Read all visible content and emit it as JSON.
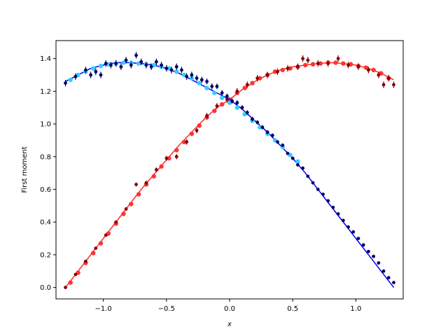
{
  "chart_data": {
    "type": "scatter",
    "title": "",
    "xlabel": "x",
    "ylabel": "First moment",
    "xlim": [
      -1.375,
      1.375
    ],
    "ylim": [
      -0.07,
      1.51
    ],
    "xticks": [
      -1.0,
      -0.5,
      0.0,
      0.5,
      1.0
    ],
    "xtick_labels": [
      "−1.0",
      "−0.5",
      "0.0",
      "0.5",
      "1.0"
    ],
    "yticks": [
      0.0,
      0.2,
      0.4,
      0.6,
      0.8,
      1.0,
      1.2,
      1.4
    ],
    "ytick_labels": [
      "0.0",
      "0.2",
      "0.4",
      "0.6",
      "0.8",
      "1.0",
      "1.2",
      "1.4"
    ],
    "grid": false,
    "legend": "none",
    "series": [
      {
        "kind": "line",
        "color": "#ff2a2a",
        "x": [
          -1.3,
          -1.2,
          -1.1,
          -1.0,
          -0.9,
          -0.8,
          -0.7,
          -0.6,
          -0.5,
          -0.4,
          -0.3,
          -0.2,
          -0.1,
          0.0,
          0.1,
          0.2,
          0.3,
          0.4,
          0.5,
          0.6,
          0.7,
          0.8,
          0.9,
          1.0,
          1.1,
          1.2,
          1.3
        ],
        "y": [
          0.0,
          0.1,
          0.2,
          0.3,
          0.4,
          0.5,
          0.6,
          0.69,
          0.78,
          0.87,
          0.95,
          1.03,
          1.1,
          1.15,
          1.21,
          1.26,
          1.3,
          1.33,
          1.35,
          1.36,
          1.37,
          1.375,
          1.37,
          1.36,
          1.34,
          1.31,
          1.27
        ]
      },
      {
        "kind": "points",
        "color": "#ff3333",
        "x": [
          -1.26,
          -1.2,
          -1.14,
          -1.08,
          -1.02,
          -0.96,
          -0.9,
          -0.84,
          -0.78,
          -0.72,
          -0.66,
          -0.6,
          -0.54,
          -0.48,
          -0.42,
          -0.36,
          -0.3,
          -0.24,
          -0.18,
          -0.12,
          -0.06,
          0.0,
          0.06,
          0.12,
          0.18,
          0.24,
          0.3,
          0.36,
          0.42,
          0.48,
          0.54,
          0.6,
          0.66,
          0.72,
          0.78,
          0.84,
          0.9,
          0.96,
          1.02,
          1.08,
          1.14,
          1.2,
          1.26
        ],
        "y": [
          0.03,
          0.09,
          0.15,
          0.21,
          0.27,
          0.33,
          0.39,
          0.45,
          0.51,
          0.57,
          0.63,
          0.68,
          0.74,
          0.79,
          0.84,
          0.89,
          0.94,
          0.99,
          1.04,
          1.08,
          1.12,
          1.15,
          1.19,
          1.22,
          1.25,
          1.28,
          1.3,
          1.32,
          1.33,
          1.34,
          1.35,
          1.36,
          1.365,
          1.37,
          1.375,
          1.375,
          1.37,
          1.365,
          1.355,
          1.345,
          1.33,
          1.31,
          1.28
        ]
      },
      {
        "kind": "errorbar",
        "color": "#8b0000",
        "x": [
          -1.3,
          -1.22,
          -1.14,
          -1.06,
          -0.98,
          -0.9,
          -0.82,
          -0.74,
          -0.66,
          -0.58,
          -0.5,
          -0.42,
          -0.34,
          -0.26,
          -0.18,
          -0.1,
          -0.02,
          0.06,
          0.14,
          0.22,
          0.3,
          0.38,
          0.46,
          0.54,
          0.58,
          0.62,
          0.7,
          0.78,
          0.86,
          0.94,
          1.02,
          1.1,
          1.18,
          1.22,
          1.26,
          1.3
        ],
        "y": [
          0.0,
          0.08,
          0.16,
          0.24,
          0.32,
          0.4,
          0.48,
          0.63,
          0.64,
          0.72,
          0.79,
          0.8,
          0.89,
          0.96,
          1.05,
          1.11,
          1.15,
          1.2,
          1.24,
          1.28,
          1.3,
          1.32,
          1.34,
          1.35,
          1.4,
          1.39,
          1.37,
          1.37,
          1.4,
          1.36,
          1.35,
          1.33,
          1.3,
          1.24,
          1.28,
          1.24
        ],
        "yerr": [
          0.005,
          0.006,
          0.007,
          0.008,
          0.009,
          0.01,
          0.011,
          0.012,
          0.013,
          0.014,
          0.015,
          0.016,
          0.017,
          0.017,
          0.018,
          0.018,
          0.019,
          0.019,
          0.02,
          0.02,
          0.02,
          0.02,
          0.02,
          0.02,
          0.02,
          0.02,
          0.02,
          0.02,
          0.02,
          0.02,
          0.02,
          0.02,
          0.02,
          0.02,
          0.02,
          0.02
        ]
      },
      {
        "kind": "line",
        "color": "#0000ee",
        "x": [
          -1.3,
          -1.2,
          -1.1,
          -1.0,
          -0.9,
          -0.8,
          -0.7,
          -0.6,
          -0.5,
          -0.4,
          -0.3,
          -0.2,
          -0.1,
          0.0,
          0.1,
          0.2,
          0.3,
          0.4,
          0.5,
          0.6,
          0.7,
          0.8,
          0.9,
          1.0,
          1.1,
          1.2,
          1.3
        ],
        "y": [
          1.26,
          1.3,
          1.34,
          1.36,
          1.375,
          1.375,
          1.37,
          1.36,
          1.34,
          1.31,
          1.27,
          1.23,
          1.19,
          1.15,
          1.09,
          1.02,
          0.95,
          0.87,
          0.79,
          0.7,
          0.6,
          0.5,
          0.4,
          0.3,
          0.2,
          0.1,
          0.0
        ]
      },
      {
        "kind": "points",
        "color": "#33ccff",
        "x": [
          -1.26,
          -1.2,
          -1.14,
          -1.08,
          -1.02,
          -0.96,
          -0.9,
          -0.84,
          -0.78,
          -0.72,
          -0.66,
          -0.6,
          -0.54,
          -0.48,
          -0.42,
          -0.36,
          -0.3,
          -0.24,
          -0.18,
          -0.12,
          -0.06,
          0.0,
          0.06,
          0.12,
          0.18,
          0.24,
          0.3,
          0.36,
          0.42,
          0.48,
          0.54
        ],
        "y": [
          1.27,
          1.3,
          1.32,
          1.34,
          1.355,
          1.365,
          1.37,
          1.375,
          1.375,
          1.37,
          1.365,
          1.36,
          1.35,
          1.34,
          1.32,
          1.3,
          1.28,
          1.25,
          1.22,
          1.19,
          1.16,
          1.13,
          1.1,
          1.06,
          1.02,
          0.98,
          0.94,
          0.9,
          0.86,
          0.81,
          0.77
        ]
      },
      {
        "kind": "errorbar",
        "color": "#000066",
        "x": [
          -1.3,
          -1.22,
          -1.14,
          -1.1,
          -1.06,
          -1.02,
          -0.98,
          -0.94,
          -0.9,
          -0.86,
          -0.82,
          -0.78,
          -0.74,
          -0.7,
          -0.66,
          -0.62,
          -0.58,
          -0.54,
          -0.5,
          -0.46,
          -0.42,
          -0.38,
          -0.34,
          -0.3,
          -0.26,
          -0.22,
          -0.18,
          -0.14,
          -0.1,
          -0.06,
          -0.02,
          0.02,
          0.06,
          0.1,
          0.14,
          0.18,
          0.22,
          0.26,
          0.3,
          0.34,
          0.38,
          0.42,
          0.46,
          0.5,
          0.54,
          0.58,
          0.62,
          0.66,
          0.7,
          0.74,
          0.78,
          0.82,
          0.86,
          0.9,
          0.94,
          0.98,
          1.02,
          1.06,
          1.1,
          1.14,
          1.18,
          1.22,
          1.26,
          1.3
        ],
        "y": [
          1.25,
          1.29,
          1.33,
          1.3,
          1.32,
          1.3,
          1.37,
          1.36,
          1.37,
          1.35,
          1.39,
          1.36,
          1.42,
          1.38,
          1.36,
          1.35,
          1.38,
          1.36,
          1.34,
          1.33,
          1.35,
          1.33,
          1.29,
          1.3,
          1.28,
          1.27,
          1.26,
          1.23,
          1.23,
          1.19,
          1.17,
          1.14,
          1.13,
          1.1,
          1.07,
          1.03,
          1.01,
          0.98,
          0.95,
          0.93,
          0.89,
          0.87,
          0.82,
          0.79,
          0.75,
          0.73,
          0.68,
          0.64,
          0.6,
          0.57,
          0.53,
          0.49,
          0.45,
          0.41,
          0.37,
          0.34,
          0.3,
          0.26,
          0.22,
          0.19,
          0.15,
          0.1,
          0.06,
          0.03
        ],
        "yerr": [
          0.02,
          0.02,
          0.02,
          0.02,
          0.02,
          0.02,
          0.02,
          0.02,
          0.02,
          0.02,
          0.02,
          0.02,
          0.02,
          0.02,
          0.02,
          0.02,
          0.02,
          0.02,
          0.02,
          0.02,
          0.02,
          0.02,
          0.02,
          0.02,
          0.019,
          0.019,
          0.018,
          0.018,
          0.017,
          0.017,
          0.016,
          0.016,
          0.015,
          0.015,
          0.014,
          0.014,
          0.013,
          0.013,
          0.012,
          0.012,
          0.011,
          0.011,
          0.01,
          0.01,
          0.01,
          0.009,
          0.009,
          0.009,
          0.008,
          0.008,
          0.008,
          0.007,
          0.007,
          0.007,
          0.006,
          0.006,
          0.006,
          0.006,
          0.005,
          0.005,
          0.005,
          0.005,
          0.005,
          0.005
        ]
      }
    ]
  }
}
